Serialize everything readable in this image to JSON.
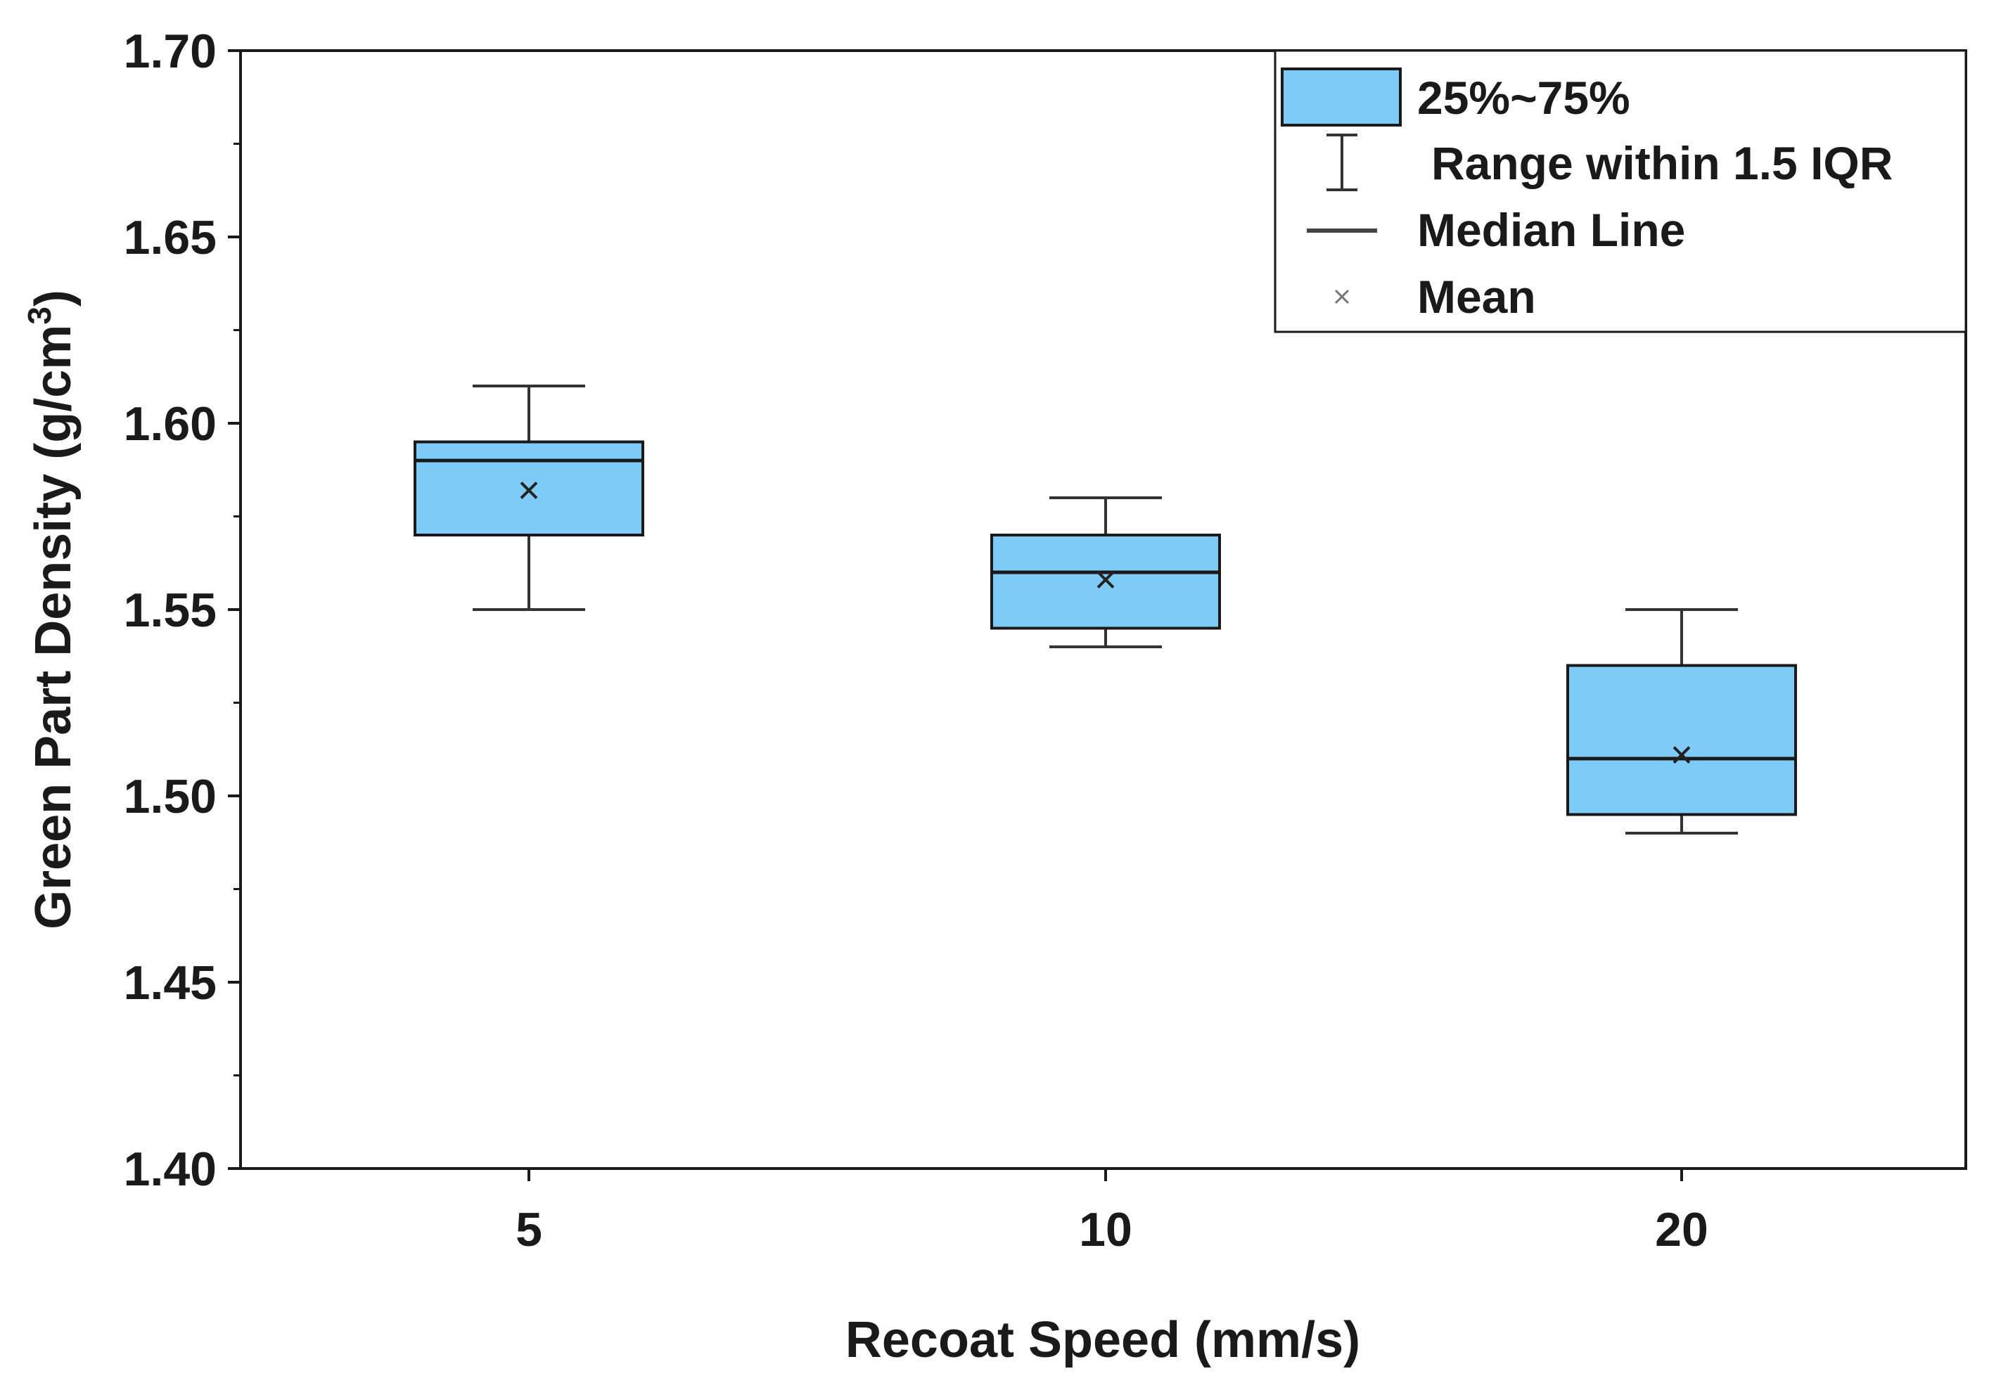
{
  "chart_data": {
    "type": "box",
    "title": "",
    "xlabel": "Recoat Speed (mm/s)",
    "ylabel_main": "Green Part Density (g/cm",
    "ylabel_sup": "3",
    "ylabel_close": ")",
    "ylim": [
      1.4,
      1.7
    ],
    "yticks": [
      "1.40",
      "1.45",
      "1.50",
      "1.55",
      "1.60",
      "1.65",
      "1.70"
    ],
    "categories": [
      "5",
      "10",
      "20"
    ],
    "boxes": [
      {
        "category": "5",
        "whisker_low": 1.55,
        "q1": 1.57,
        "median": 1.59,
        "q3": 1.595,
        "whisker_high": 1.61,
        "mean": 1.582
      },
      {
        "category": "10",
        "whisker_low": 1.54,
        "q1": 1.545,
        "median": 1.56,
        "q3": 1.57,
        "whisker_high": 1.58,
        "mean": 1.558
      },
      {
        "category": "20",
        "whisker_low": 1.49,
        "q1": 1.495,
        "median": 1.51,
        "q3": 1.535,
        "whisker_high": 1.55,
        "mean": 1.511
      }
    ],
    "legend": {
      "position": "top-right",
      "box_label": "25%~75%",
      "range_label": "Range within 1.5 IQR",
      "median_label": "Median Line",
      "mean_label": "Mean"
    },
    "colors": {
      "box_fill": "#7fcbf7",
      "box_stroke": "#1a1a1a",
      "axis": "#1a1a1a",
      "whisker": "#333333"
    }
  }
}
